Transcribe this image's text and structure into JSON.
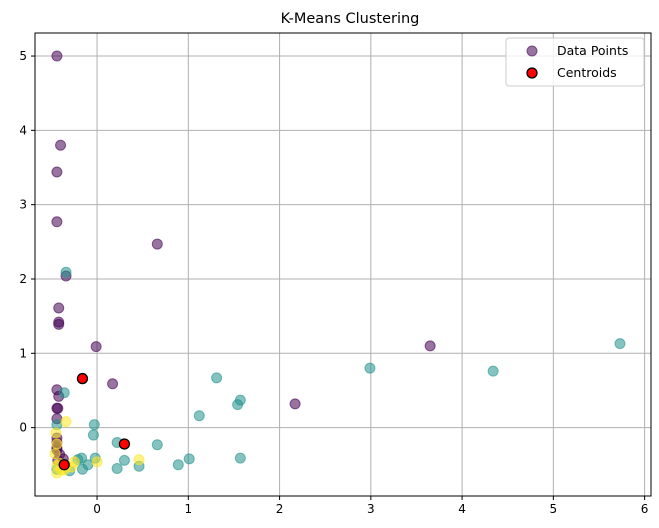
{
  "chart_data": {
    "type": "scatter",
    "title": "K-Means Clustering",
    "xlabel": "",
    "ylabel": "",
    "xlim": [
      -0.68,
      6.07
    ],
    "ylim": [
      -0.92,
      5.31
    ],
    "xticks": [
      0,
      1,
      2,
      3,
      4,
      5,
      6
    ],
    "yticks": [
      0,
      1,
      2,
      3,
      4,
      5
    ],
    "grid": true,
    "legend_position": "top-right",
    "colors": {
      "cluster_0": "#440154",
      "cluster_1": "#21918c",
      "cluster_2": "#fde725",
      "centroid_fill": "#ff0000",
      "centroid_edge": "#000000",
      "grid": "#b0b0b0"
    },
    "series": [
      {
        "name": "Data Points",
        "cluster": 0,
        "points": [
          [
            -0.44,
            5.0
          ],
          [
            -0.4,
            3.8
          ],
          [
            -0.44,
            3.44
          ],
          [
            -0.44,
            2.77
          ],
          [
            0.66,
            2.47
          ],
          [
            -0.34,
            2.04
          ],
          [
            -0.42,
            1.61
          ],
          [
            -0.42,
            1.42
          ],
          [
            -0.42,
            1.39
          ],
          [
            -0.01,
            1.09
          ],
          [
            0.17,
            0.59
          ],
          [
            -0.44,
            0.51
          ],
          [
            -0.42,
            0.42
          ],
          [
            -0.44,
            0.26
          ],
          [
            -0.43,
            0.26
          ],
          [
            -0.44,
            0.12
          ],
          [
            -0.44,
            -0.14
          ],
          [
            -0.44,
            -0.2
          ],
          [
            -0.44,
            -0.27
          ],
          [
            -0.44,
            -0.3
          ],
          [
            -0.41,
            -0.36
          ],
          [
            -0.37,
            -0.42
          ],
          [
            -0.43,
            -0.44
          ],
          [
            3.65,
            1.1
          ],
          [
            2.17,
            0.32
          ]
        ]
      },
      {
        "name": "Data Points",
        "cluster": 1,
        "points": [
          [
            -0.34,
            2.09
          ],
          [
            -0.36,
            0.47
          ],
          [
            -0.44,
            0.04
          ],
          [
            -0.03,
            0.04
          ],
          [
            -0.04,
            -0.1
          ],
          [
            0.22,
            -0.2
          ],
          [
            0.66,
            -0.23
          ],
          [
            -0.02,
            -0.41
          ],
          [
            0.3,
            -0.44
          ],
          [
            -0.17,
            -0.41
          ],
          [
            -0.21,
            -0.43
          ],
          [
            0.46,
            -0.52
          ],
          [
            0.89,
            -0.5
          ],
          [
            1.01,
            -0.42
          ],
          [
            1.12,
            0.16
          ],
          [
            1.31,
            0.67
          ],
          [
            1.54,
            0.31
          ],
          [
            1.57,
            0.37
          ],
          [
            1.57,
            -0.41
          ],
          [
            0.22,
            -0.55
          ],
          [
            -0.1,
            -0.5
          ],
          [
            -0.16,
            -0.56
          ],
          [
            -0.3,
            -0.58
          ],
          [
            -0.44,
            -0.56
          ],
          [
            2.99,
            0.8
          ],
          [
            4.34,
            0.76
          ],
          [
            5.73,
            1.13
          ]
        ]
      },
      {
        "name": "Data Points",
        "cluster": 2,
        "points": [
          [
            -0.34,
            0.08
          ],
          [
            -0.45,
            -0.07
          ],
          [
            -0.44,
            -0.22
          ],
          [
            -0.46,
            -0.35
          ],
          [
            -0.41,
            -0.48
          ],
          [
            -0.34,
            -0.52
          ],
          [
            -0.28,
            -0.53
          ],
          [
            -0.36,
            -0.57
          ],
          [
            -0.44,
            -0.61
          ],
          [
            -0.25,
            -0.46
          ],
          [
            0.0,
            -0.46
          ],
          [
            0.46,
            -0.43
          ],
          [
            -0.44,
            -0.51
          ],
          [
            -0.39,
            -0.57
          ]
        ]
      },
      {
        "name": "Centroids",
        "points": [
          [
            -0.16,
            0.66
          ],
          [
            0.3,
            -0.22
          ],
          [
            -0.36,
            -0.5
          ]
        ]
      }
    ],
    "legend": [
      "Data Points",
      "Centroids"
    ]
  }
}
